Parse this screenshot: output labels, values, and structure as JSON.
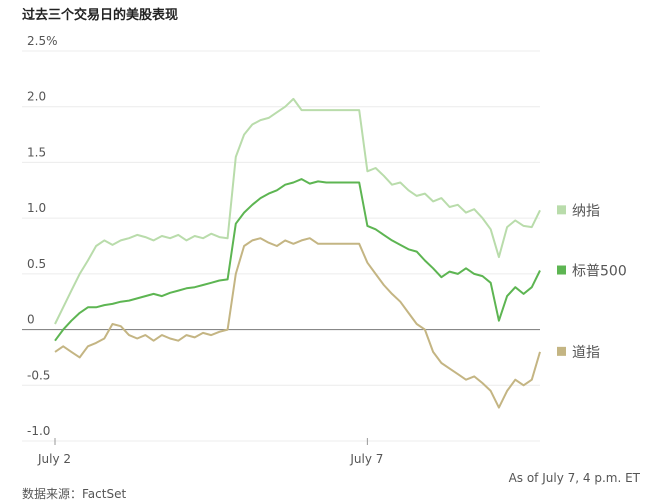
{
  "chart_data": {
    "type": "line",
    "title": "过去三个交易日的美股表现",
    "note": "As of July 7, 4 p.m. ET",
    "source": "数据来源：FactSet",
    "categories": [
      "July 2",
      null,
      null,
      null,
      null,
      null,
      null,
      null,
      null,
      null,
      null,
      null,
      null,
      null,
      null,
      null,
      null,
      null,
      null,
      null,
      null,
      null,
      null,
      null,
      null,
      null,
      null,
      null,
      null,
      null,
      null,
      null,
      null,
      null,
      null,
      null,
      null,
      null,
      "July 7",
      null,
      null,
      null,
      null,
      null,
      null,
      null,
      null,
      null,
      null,
      null,
      null,
      null,
      null,
      null,
      null,
      null,
      null,
      null,
      null,
      null
    ],
    "series": [
      {
        "name": "纳指",
        "color": "#b9dcab",
        "values": [
          0.05,
          0.2,
          0.35,
          0.5,
          0.62,
          0.75,
          0.8,
          0.76,
          0.8,
          0.82,
          0.85,
          0.83,
          0.8,
          0.84,
          0.82,
          0.85,
          0.8,
          0.84,
          0.82,
          0.86,
          0.83,
          0.82,
          1.55,
          1.75,
          1.84,
          1.88,
          1.9,
          1.95,
          2.0,
          2.07,
          1.97,
          1.97,
          1.97,
          1.97,
          1.97,
          1.97,
          1.97,
          1.97,
          1.42,
          1.45,
          1.38,
          1.3,
          1.32,
          1.25,
          1.2,
          1.22,
          1.15,
          1.18,
          1.1,
          1.12,
          1.05,
          1.08,
          1.0,
          0.9,
          0.65,
          0.92,
          0.98,
          0.93,
          0.92,
          1.07
        ]
      },
      {
        "name": "标普500",
        "color": "#5db552",
        "values": [
          -0.1,
          0.0,
          0.08,
          0.15,
          0.2,
          0.2,
          0.22,
          0.23,
          0.25,
          0.26,
          0.28,
          0.3,
          0.32,
          0.3,
          0.33,
          0.35,
          0.37,
          0.38,
          0.4,
          0.42,
          0.44,
          0.45,
          0.95,
          1.05,
          1.12,
          1.18,
          1.22,
          1.25,
          1.3,
          1.32,
          1.35,
          1.31,
          1.33,
          1.32,
          1.32,
          1.32,
          1.32,
          1.32,
          0.93,
          0.9,
          0.85,
          0.8,
          0.76,
          0.72,
          0.7,
          0.62,
          0.55,
          0.47,
          0.52,
          0.5,
          0.55,
          0.5,
          0.48,
          0.42,
          0.08,
          0.3,
          0.38,
          0.32,
          0.38,
          0.53
        ]
      },
      {
        "name": "道指",
        "color": "#c4b583",
        "values": [
          -0.2,
          -0.15,
          -0.2,
          -0.25,
          -0.15,
          -0.12,
          -0.08,
          0.05,
          0.03,
          -0.05,
          -0.08,
          -0.05,
          -0.1,
          -0.05,
          -0.08,
          -0.1,
          -0.05,
          -0.07,
          -0.03,
          -0.05,
          -0.02,
          0.0,
          0.5,
          0.75,
          0.8,
          0.82,
          0.78,
          0.75,
          0.8,
          0.77,
          0.8,
          0.82,
          0.77,
          0.77,
          0.77,
          0.77,
          0.77,
          0.77,
          0.6,
          0.5,
          0.4,
          0.32,
          0.25,
          0.15,
          0.05,
          0.0,
          -0.2,
          -0.3,
          -0.35,
          -0.4,
          -0.45,
          -0.42,
          -0.48,
          -0.55,
          -0.7,
          -0.55,
          -0.45,
          -0.5,
          -0.45,
          -0.2
        ]
      }
    ],
    "ylim": [
      -1,
      2.5
    ],
    "yticks": [
      {
        "value": 2.5,
        "label": "2.5%"
      },
      {
        "value": 2,
        "label": "2.0"
      },
      1.5,
      {
        "value": 1,
        "label": "1.0"
      },
      0.5,
      0,
      -0.5,
      {
        "value": -1,
        "label": "-1.0"
      }
    ],
    "grid": true
  }
}
